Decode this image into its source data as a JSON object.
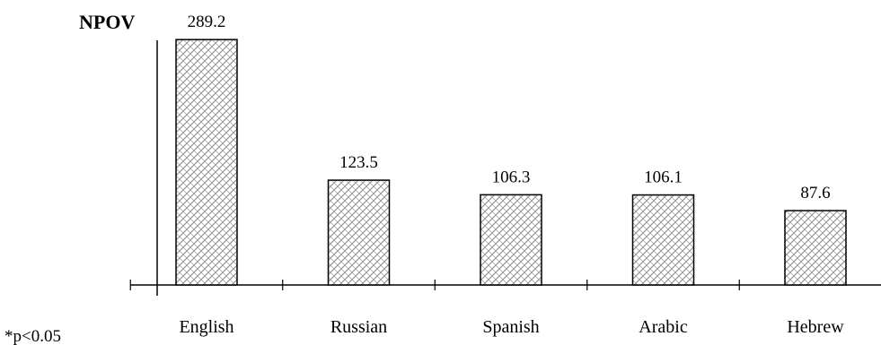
{
  "chart_data": {
    "type": "bar",
    "title": "NPOV",
    "categories": [
      "English",
      "Russian",
      "Spanish",
      "Arabic",
      "Hebrew"
    ],
    "values": [
      289.2,
      123.5,
      106.3,
      106.1,
      87.6
    ],
    "value_labels": [
      "289.2",
      "123.5",
      "106.3",
      "106.1",
      "87.6"
    ],
    "xlabel": "",
    "ylabel": "",
    "ylim": [
      0,
      320
    ],
    "grid": false,
    "legend": "none",
    "bar_pattern": "crosshatch",
    "footnote": "*p<0.05"
  }
}
